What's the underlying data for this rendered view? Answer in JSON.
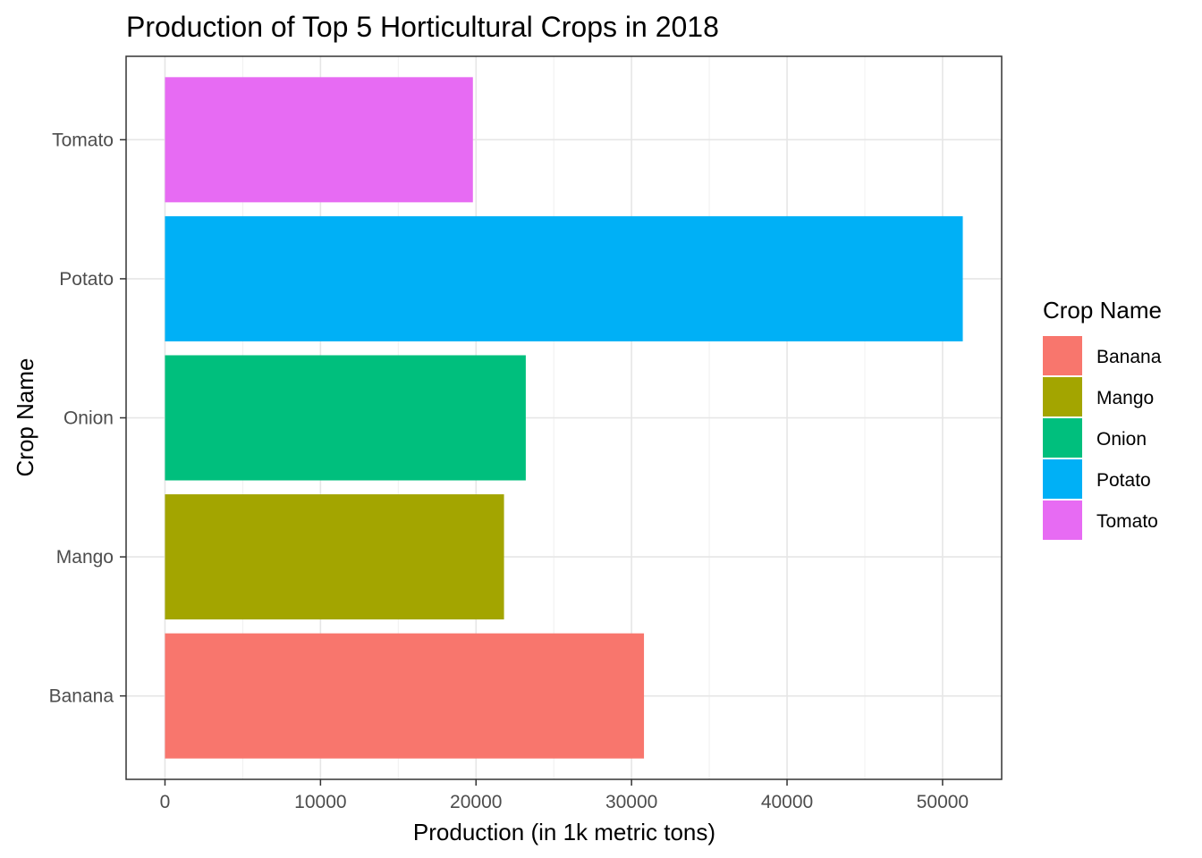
{
  "chart_data": {
    "type": "bar",
    "orientation": "horizontal",
    "title": "Production of Top 5 Horticultural Crops in 2018",
    "xlabel": "Production (in 1k metric tons)",
    "ylabel": "Crop Name",
    "xlim": [
      -2500,
      53800
    ],
    "xticks": [
      0,
      10000,
      20000,
      30000,
      40000,
      50000
    ],
    "xtick_labels": [
      "0",
      "10000",
      "20000",
      "30000",
      "40000",
      "50000"
    ],
    "categories": [
      "Banana",
      "Mango",
      "Onion",
      "Potato",
      "Tomato"
    ],
    "values": [
      30800,
      21800,
      23200,
      51300,
      19800
    ],
    "colors": [
      "#F8766D",
      "#A3A500",
      "#00BF7D",
      "#00B0F6",
      "#E76BF3"
    ],
    "grid": true,
    "legend": {
      "title": "Crop Name",
      "position": "right",
      "items": [
        "Banana",
        "Mango",
        "Onion",
        "Potato",
        "Tomato"
      ]
    }
  }
}
